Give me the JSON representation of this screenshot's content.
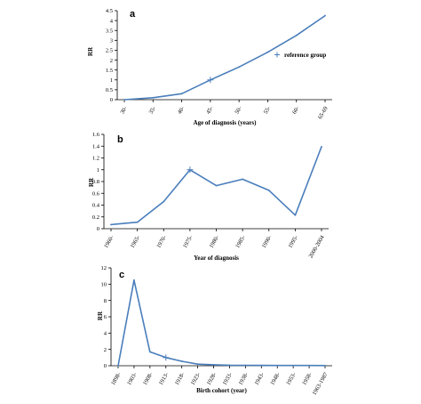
{
  "chart_data": [
    {
      "type": "line",
      "panel_label": "a",
      "xlabel": "Age of diagnosis (years)",
      "ylabel": "RR",
      "ylim": [
        0,
        4.5
      ],
      "yticks": [
        "0",
        "0.5",
        "1",
        "1.5",
        "2",
        "2.5",
        "3",
        "3.5",
        "4",
        "4.5"
      ],
      "categories": [
        "30-",
        "35-",
        "40-",
        "45-",
        "50-",
        "55-",
        "60-",
        "65-69"
      ],
      "series": [
        {
          "values": [
            0.0,
            0.1,
            0.3,
            1.0,
            1.65,
            2.4,
            3.25,
            4.25
          ]
        }
      ],
      "reference_index": 3,
      "legend": {
        "marker": "+",
        "label": "reference group"
      },
      "line_color": "#4a7ebb"
    },
    {
      "type": "line",
      "panel_label": "b",
      "xlabel": "Year of diagnosis",
      "ylabel": "RR",
      "ylim": [
        0,
        1.6
      ],
      "yticks": [
        "0",
        "0.2",
        "0.4",
        "0.6",
        "0.8",
        "1",
        "1.2",
        "1.4",
        "1.6"
      ],
      "categories": [
        "1960-",
        "1965-",
        "1970-",
        "1975-",
        "1980-",
        "1985-",
        "1990-",
        "1995-",
        "2000-2004"
      ],
      "series": [
        {
          "values": [
            0.07,
            0.11,
            0.46,
            1.0,
            0.73,
            0.84,
            0.65,
            0.23,
            1.39
          ]
        }
      ],
      "reference_index": 3,
      "line_color": "#4a7ebb"
    },
    {
      "type": "line",
      "panel_label": "c",
      "xlabel": "Birth cohort (year)",
      "ylabel": "RR",
      "ylim": [
        0,
        12
      ],
      "yticks": [
        "0",
        "2",
        "4",
        "6",
        "8",
        "10",
        "12"
      ],
      "categories": [
        "1898-",
        "1903-",
        "1908-",
        "1913-",
        "1918-",
        "1923-",
        "1928-",
        "1933-",
        "1938-",
        "1943-",
        "1948-",
        "1953-",
        "1958-",
        "1963-1987"
      ],
      "series": [
        {
          "values": [
            0.0,
            10.5,
            1.7,
            1.0,
            0.55,
            0.2,
            0.12,
            0.07,
            0.05,
            0.04,
            0.03,
            0.03,
            0.03,
            0.02
          ]
        }
      ],
      "reference_index": 3,
      "line_color": "#4a7ebb"
    }
  ]
}
